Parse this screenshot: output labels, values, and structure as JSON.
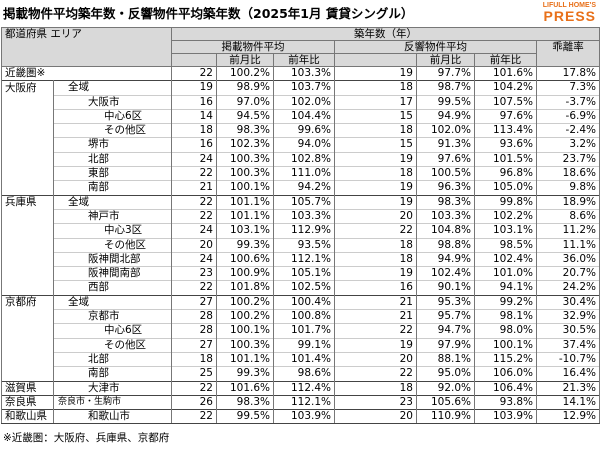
{
  "header": {
    "title": "掲載物件平均築年数・反響物件平均築年数（2025年1月 賃貸シングル）",
    "logo_top": "LIFULL HOME'S",
    "logo_bottom": "PRESS"
  },
  "table": {
    "columns": {
      "region": "都道府県 エリア",
      "group": "築年数（年）",
      "listed": "掲載物件平均",
      "inquired": "反響物件平均",
      "gap": "乖離率",
      "listed_mom": "前月比",
      "listed_yoy": "前年比",
      "inquired_mom": "前月比",
      "inquired_yoy": "前年比"
    },
    "rows": [
      {
        "pref": "近畿圏※",
        "values": [
          "22",
          "100.2%",
          "103.3%",
          "19",
          "97.7%",
          "101.6%",
          "17.8%"
        ]
      },
      {
        "pref": "大阪府",
        "area": "全域",
        "values": [
          "19",
          "98.9%",
          "103.7%",
          "18",
          "98.7%",
          "104.2%",
          "7.3%"
        ]
      },
      {
        "area": "大阪市",
        "values": [
          "16",
          "97.0%",
          "102.0%",
          "17",
          "99.5%",
          "107.5%",
          "-3.7%"
        ]
      },
      {
        "area": "中心6区",
        "values": [
          "14",
          "94.5%",
          "104.4%",
          "15",
          "94.9%",
          "97.6%",
          "-6.9%"
        ]
      },
      {
        "area": "その他区",
        "values": [
          "18",
          "98.3%",
          "99.6%",
          "18",
          "102.0%",
          "113.4%",
          "-2.4%"
        ]
      },
      {
        "area": "堺市",
        "values": [
          "16",
          "102.3%",
          "94.0%",
          "15",
          "91.3%",
          "93.6%",
          "3.2%"
        ]
      },
      {
        "area": "北部",
        "values": [
          "24",
          "100.3%",
          "102.8%",
          "19",
          "97.6%",
          "101.5%",
          "23.7%"
        ]
      },
      {
        "area": "東部",
        "values": [
          "22",
          "100.3%",
          "111.0%",
          "18",
          "100.5%",
          "96.8%",
          "18.6%"
        ]
      },
      {
        "area": "南部",
        "values": [
          "21",
          "100.1%",
          "94.2%",
          "19",
          "96.3%",
          "105.0%",
          "9.8%"
        ]
      },
      {
        "pref": "兵庫県",
        "area": "全域",
        "values": [
          "22",
          "101.1%",
          "105.7%",
          "19",
          "98.3%",
          "99.8%",
          "18.9%"
        ]
      },
      {
        "area": "神戸市",
        "values": [
          "22",
          "101.1%",
          "103.3%",
          "20",
          "103.3%",
          "102.2%",
          "8.6%"
        ]
      },
      {
        "area": "中心3区",
        "values": [
          "24",
          "103.1%",
          "112.9%",
          "22",
          "104.8%",
          "103.1%",
          "11.2%"
        ]
      },
      {
        "area": "その他区",
        "values": [
          "20",
          "99.3%",
          "93.5%",
          "18",
          "98.8%",
          "98.5%",
          "11.1%"
        ]
      },
      {
        "area": "阪神間北部",
        "values": [
          "24",
          "100.6%",
          "112.1%",
          "18",
          "94.9%",
          "102.4%",
          "36.0%"
        ]
      },
      {
        "area": "阪神間南部",
        "values": [
          "23",
          "100.9%",
          "105.1%",
          "19",
          "102.4%",
          "101.0%",
          "20.7%"
        ]
      },
      {
        "area": "西部",
        "values": [
          "22",
          "101.8%",
          "102.5%",
          "16",
          "90.1%",
          "94.1%",
          "24.2%"
        ]
      },
      {
        "pref": "京都府",
        "area": "全域",
        "values": [
          "27",
          "100.2%",
          "100.4%",
          "21",
          "95.3%",
          "99.2%",
          "30.4%"
        ]
      },
      {
        "area": "京都市",
        "values": [
          "28",
          "100.2%",
          "100.8%",
          "21",
          "95.7%",
          "98.1%",
          "32.9%"
        ]
      },
      {
        "area": "中心6区",
        "values": [
          "28",
          "100.1%",
          "101.7%",
          "22",
          "94.7%",
          "98.0%",
          "30.5%"
        ]
      },
      {
        "area": "その他区",
        "values": [
          "27",
          "100.3%",
          "99.1%",
          "19",
          "97.9%",
          "100.1%",
          "37.4%"
        ]
      },
      {
        "area": "北部",
        "values": [
          "18",
          "101.1%",
          "101.4%",
          "20",
          "88.1%",
          "115.2%",
          "-10.7%"
        ]
      },
      {
        "area": "南部",
        "values": [
          "25",
          "99.3%",
          "98.6%",
          "22",
          "95.0%",
          "106.0%",
          "16.4%"
        ]
      },
      {
        "pref": "滋賀県",
        "area": "大津市",
        "values": [
          "22",
          "101.6%",
          "112.4%",
          "18",
          "92.0%",
          "106.4%",
          "21.3%"
        ]
      },
      {
        "pref": "奈良県",
        "area": "奈良市・生駒市",
        "values": [
          "26",
          "98.3%",
          "112.1%",
          "23",
          "105.6%",
          "93.8%",
          "14.1%"
        ]
      },
      {
        "pref": "和歌山県",
        "area": "和歌山市",
        "values": [
          "22",
          "99.5%",
          "103.9%",
          "20",
          "110.9%",
          "103.9%",
          "12.9%"
        ]
      }
    ]
  },
  "footnote": "※近畿圏：大阪府、兵庫県、京都府"
}
